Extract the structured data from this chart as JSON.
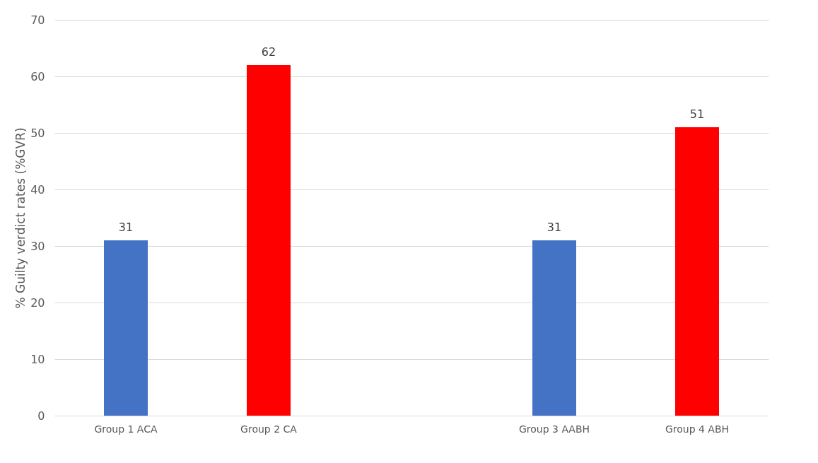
{
  "chart_data": {
    "type": "bar",
    "ylabel": "% Guilty verdict rates (%GVR)",
    "categories": [
      "Group 1 ACA",
      "Group 2 CA",
      null,
      "Group 3 AABH",
      "Group 4 ABH"
    ],
    "values": [
      31,
      62,
      null,
      31,
      51
    ],
    "colors": [
      "#4472c4",
      "#ff0000",
      "#4472c4",
      "#4472c4",
      "#ff0000"
    ],
    "ylim": [
      0,
      70
    ],
    "yticks": [
      0,
      10,
      20,
      30,
      40,
      50,
      60,
      70
    ],
    "grid": "y",
    "data_labels": true
  }
}
